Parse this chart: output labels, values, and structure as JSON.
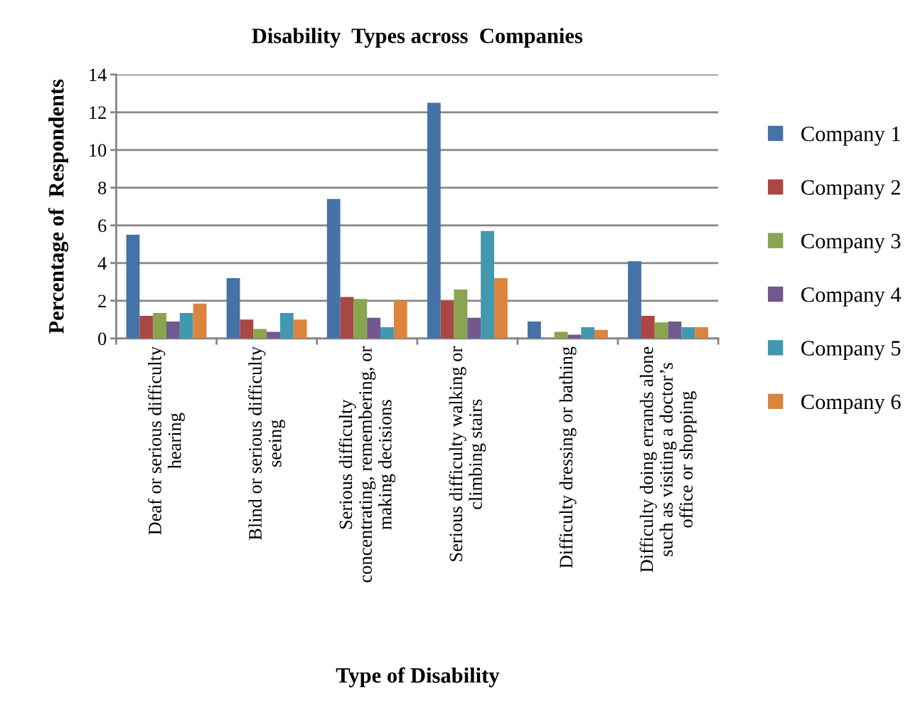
{
  "chart_data": {
    "type": "bar",
    "title": "Disability  Types across  Companies",
    "xlabel": "Type of Disability",
    "ylabel": "Percentage of  Respondents",
    "categories": [
      "Deaf or serious difficulty\nhearing",
      "Blind or serious difficulty\nseeing",
      "Serious difficulty\nconcentrating, remembering, or\nmaking decisions",
      "Serious difficulty walking or\nclimbing stairs",
      "Difficulty dressing or bathing",
      "Difficulty doing errands alone\nsuch as visiting a doctor’s\noffice or shopping"
    ],
    "series": [
      {
        "name": "Company 1",
        "color": "#4572a7",
        "values": [
          5.5,
          3.2,
          7.4,
          12.5,
          0.9,
          4.1
        ]
      },
      {
        "name": "Company 2",
        "color": "#aa4643",
        "values": [
          1.2,
          1.0,
          2.2,
          2.0,
          null,
          1.2
        ]
      },
      {
        "name": "Company 3",
        "color": "#89a54e",
        "values": [
          1.35,
          0.5,
          2.1,
          2.6,
          0.35,
          0.85
        ]
      },
      {
        "name": "Company 4",
        "color": "#71588f",
        "values": [
          0.9,
          0.35,
          1.1,
          1.1,
          0.2,
          0.9
        ]
      },
      {
        "name": "Company 5",
        "color": "#4198af",
        "values": [
          1.35,
          1.35,
          0.6,
          5.7,
          0.6,
          0.6
        ]
      },
      {
        "name": "Company 6",
        "color": "#db843d",
        "values": [
          1.85,
          1.0,
          2.0,
          3.2,
          0.45,
          0.6
        ]
      }
    ],
    "ylim": [
      0,
      14
    ],
    "yticks": [
      0,
      2,
      4,
      6,
      8,
      10,
      12,
      14
    ],
    "grid": "y",
    "legend": "right"
  }
}
